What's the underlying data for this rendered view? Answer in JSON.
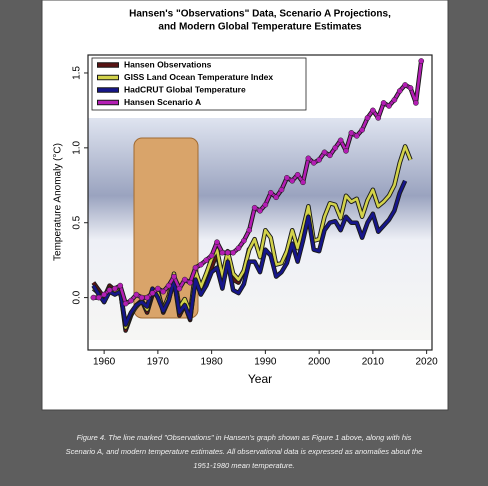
{
  "chart_data": {
    "type": "line",
    "title_lines": [
      "Hansen's \"Observations\" Data, Scenario A Projections,",
      "and Modern Global Temperature Estimates"
    ],
    "x_label": "Year",
    "y_label": "Temperature Anomaly (°C)",
    "xlim": [
      1957,
      2021
    ],
    "xticks": [
      1960,
      1970,
      1980,
      1990,
      2000,
      2010,
      2020
    ],
    "ylim": [
      -0.35,
      1.62
    ],
    "yticks": [
      {
        "value": 0,
        "label": "0.0"
      },
      {
        "value": 0.5,
        "label": "0.5"
      },
      {
        "value": 1,
        "label": "1.0"
      },
      {
        "value": 1.5,
        "label": "1.5"
      }
    ],
    "x": [
      1958,
      1959,
      1960,
      1961,
      1962,
      1963,
      1964,
      1965,
      1966,
      1967,
      1968,
      1969,
      1970,
      1971,
      1972,
      1973,
      1974,
      1975,
      1976,
      1977,
      1978,
      1979,
      1980,
      1981,
      1982,
      1983,
      1984,
      1985,
      1986,
      1987,
      1988,
      1989,
      1990,
      1991,
      1992,
      1993,
      1994,
      1995,
      1996,
      1997,
      1998,
      1999,
      2000,
      2001,
      2002,
      2003,
      2004,
      2005,
      2006,
      2007,
      2008,
      2009,
      2010,
      2011,
      2012,
      2013,
      2014,
      2015,
      2016,
      2017,
      2018,
      2019
    ],
    "series": [
      {
        "name": "Hansen Observations",
        "color": "#5a1414",
        "values": [
          0.1,
          0.05,
          0.0,
          0.08,
          0.05,
          0.05,
          -0.22,
          -0.12,
          -0.05,
          -0.02,
          -0.1,
          0.02,
          0.05,
          -0.1,
          -0.02,
          0.12,
          -0.12,
          -0.05,
          -0.15,
          0.15,
          0.05,
          0.1,
          0.2,
          0.3,
          0.1,
          0.25,
          0.12,
          0.1,
          0.18,
          0.33,
          null,
          null,
          null,
          null,
          null,
          null,
          null,
          null,
          null,
          null,
          null,
          null,
          null,
          null,
          null,
          null,
          null,
          null,
          null,
          null,
          null,
          null,
          null,
          null,
          null,
          null,
          null,
          null,
          null,
          null,
          null,
          null
        ]
      },
      {
        "name": "GISS Land Ocean Temperature Index",
        "color": "#d2d24a",
        "values": [
          0.06,
          0.03,
          -0.03,
          0.06,
          0.03,
          0.05,
          -0.2,
          -0.11,
          -0.06,
          -0.02,
          -0.08,
          0.05,
          0.03,
          -0.08,
          0.01,
          0.16,
          -0.07,
          -0.01,
          -0.1,
          0.18,
          0.07,
          0.16,
          0.26,
          0.32,
          0.14,
          0.31,
          0.16,
          0.12,
          0.18,
          0.32,
          0.39,
          0.27,
          0.45,
          0.4,
          0.22,
          0.23,
          0.31,
          0.45,
          0.33,
          0.46,
          0.61,
          0.38,
          0.39,
          0.54,
          0.63,
          0.62,
          0.53,
          0.68,
          0.64,
          0.66,
          0.54,
          0.65,
          0.72,
          0.61,
          0.64,
          0.68,
          0.75,
          0.9,
          1.01,
          0.92,
          null,
          null
        ]
      },
      {
        "name": "HadCRUT Global Temperature",
        "color": "#16168a",
        "values": [
          0.08,
          0.02,
          -0.03,
          0.04,
          0.02,
          0.04,
          -0.18,
          -0.1,
          -0.05,
          -0.03,
          -0.06,
          0.06,
          0.0,
          -0.09,
          -0.02,
          0.12,
          -0.1,
          -0.05,
          -0.14,
          0.12,
          0.02,
          0.08,
          0.17,
          0.2,
          0.06,
          0.24,
          0.05,
          0.03,
          0.09,
          0.24,
          0.24,
          0.17,
          0.32,
          0.28,
          0.14,
          0.17,
          0.23,
          0.36,
          0.24,
          0.38,
          0.54,
          0.32,
          0.31,
          0.45,
          0.5,
          0.51,
          0.45,
          0.54,
          0.5,
          0.5,
          0.4,
          0.5,
          0.56,
          0.44,
          0.48,
          0.52,
          0.58,
          0.7,
          0.78,
          null,
          null,
          null
        ]
      },
      {
        "name": "Hansen Scenario A",
        "color": "#b41eb4",
        "markers": true,
        "values": [
          0.0,
          0.0,
          0.02,
          0.05,
          0.06,
          0.08,
          -0.04,
          -0.02,
          0.02,
          0.0,
          0.0,
          0.03,
          0.06,
          0.04,
          0.08,
          0.14,
          0.06,
          0.12,
          0.1,
          0.2,
          0.22,
          0.25,
          0.28,
          0.37,
          0.3,
          0.3,
          0.3,
          0.33,
          0.38,
          0.45,
          0.6,
          0.58,
          0.62,
          0.7,
          0.67,
          0.72,
          0.8,
          0.78,
          0.82,
          0.77,
          0.93,
          0.9,
          0.92,
          0.97,
          0.95,
          1.0,
          1.05,
          0.98,
          1.1,
          1.08,
          1.12,
          1.2,
          1.25,
          1.2,
          1.3,
          1.28,
          1.32,
          1.38,
          1.42,
          1.4,
          1.3,
          1.58
        ]
      }
    ]
  },
  "caption_lines": [
    "Figure 4. The line marked \"Observations\" in Hansen's graph shown as Figure 1 above, along with his",
    "Scenario A, and modern temperature estimates. All observational data is expressed as anomalies about the",
    "1951-1980 mean temperature."
  ]
}
